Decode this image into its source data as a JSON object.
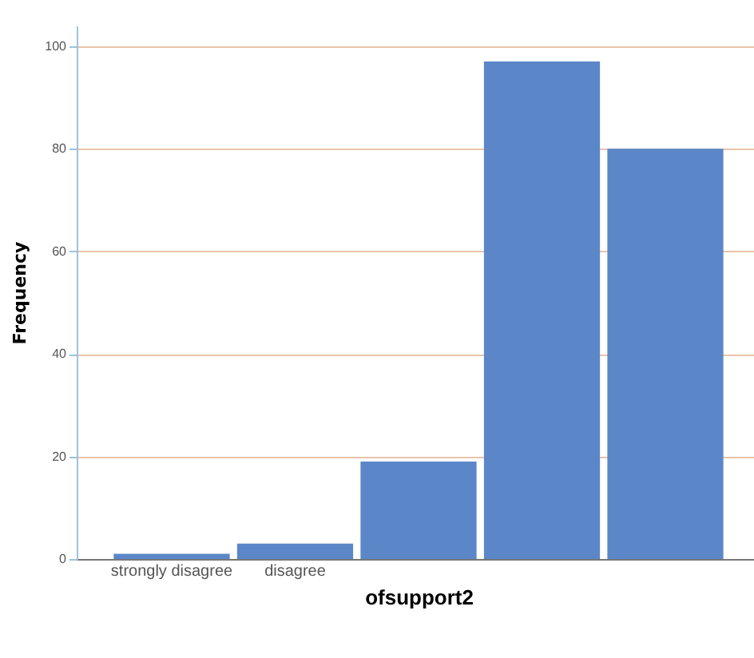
{
  "chart_data": {
    "type": "bar",
    "xlabel": "ofsupport2",
    "ylabel": "Frequency",
    "categories": [
      "strongly disagree",
      "disagree",
      null,
      null,
      null
    ],
    "values": [
      1,
      3,
      19,
      97,
      80
    ],
    "color": "#5b87c9",
    "ylim": [
      0,
      104
    ],
    "yticks": [
      0,
      20,
      40,
      60,
      80,
      100
    ],
    "grid": "y"
  }
}
